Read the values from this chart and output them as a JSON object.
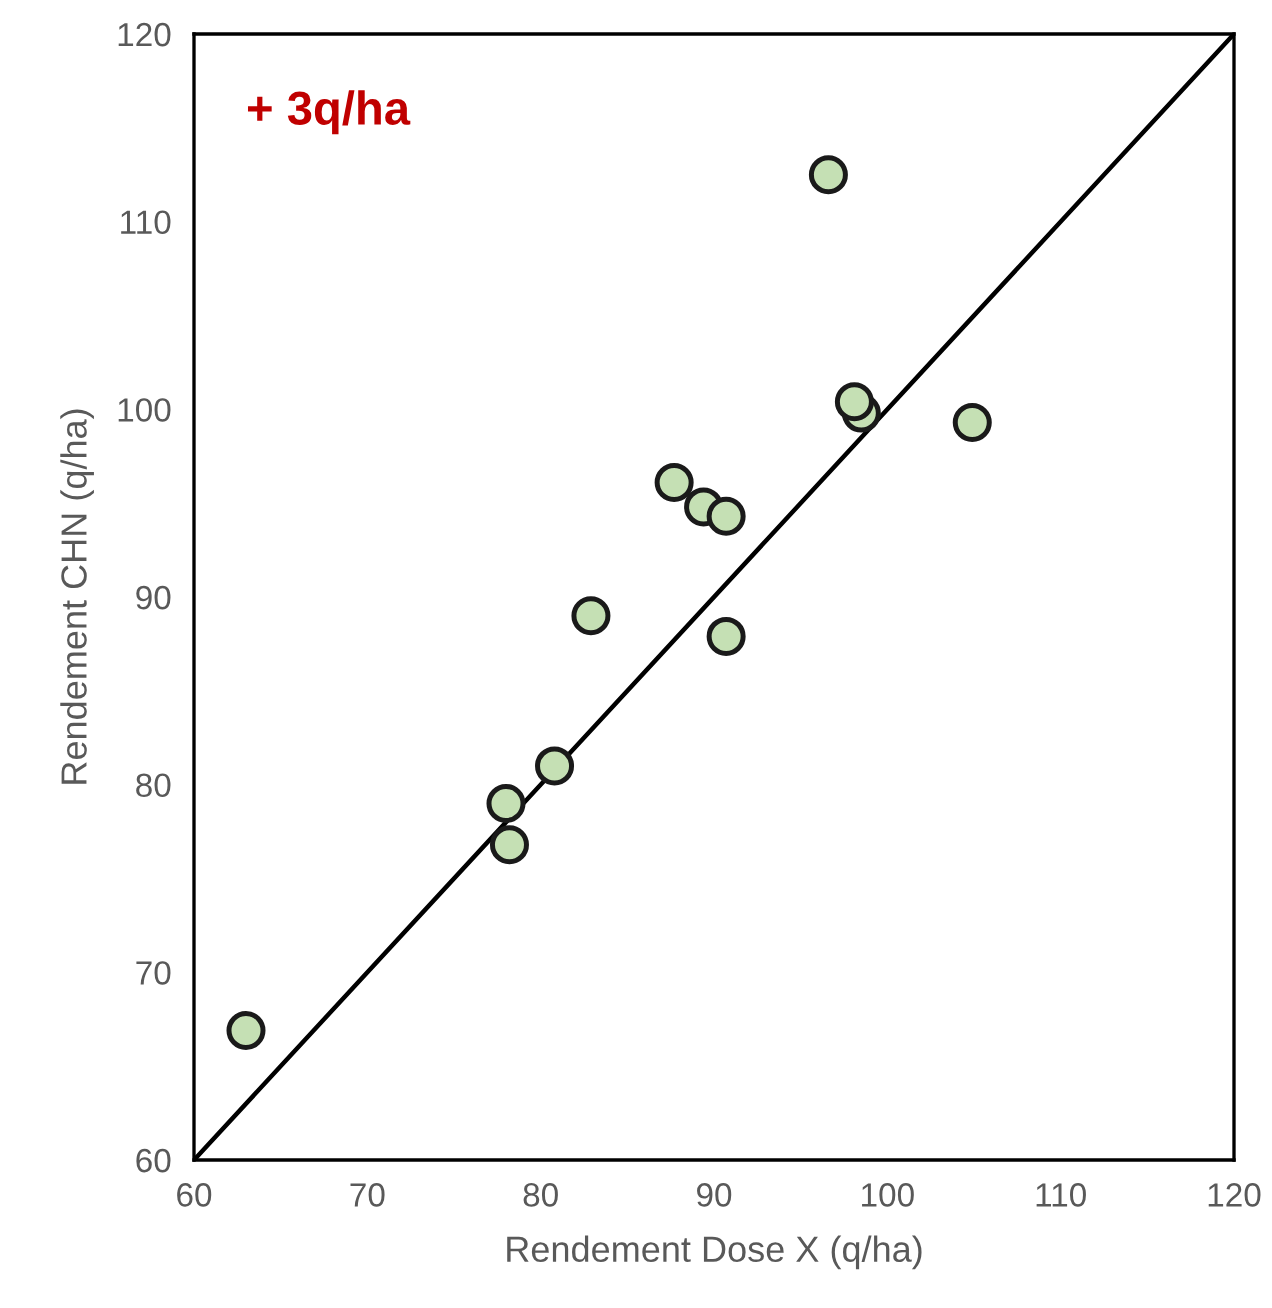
{
  "chart_data": {
    "type": "scatter",
    "xlabel": "Rendement Dose X (q/ha)",
    "ylabel": "Rendement CHN (q/ha)",
    "xlim": [
      60,
      120
    ],
    "ylim": [
      60,
      120
    ],
    "xticks": [
      60,
      70,
      80,
      90,
      100,
      110,
      120
    ],
    "yticks": [
      60,
      70,
      80,
      90,
      100,
      110,
      120
    ],
    "grid": false,
    "legend": false,
    "annotations": [
      "+ 3q/ha"
    ],
    "series": [
      {
        "marker": "circle",
        "color": "#c5e0b4",
        "x": [
          63.0,
          78.0,
          78.2,
          80.8,
          82.9,
          87.7,
          89.4,
          90.7,
          90.7,
          96.6,
          98.5,
          98.1,
          104.9
        ],
        "values": [
          66.9,
          79.0,
          76.8,
          81.0,
          89.0,
          96.1,
          94.8,
          94.3,
          87.9,
          112.5,
          99.8,
          100.4,
          99.3
        ]
      },
      {
        "type": "line",
        "marker": "none",
        "color": "#000000",
        "x": [
          60,
          120
        ],
        "values": [
          60,
          120
        ]
      }
    ]
  }
}
